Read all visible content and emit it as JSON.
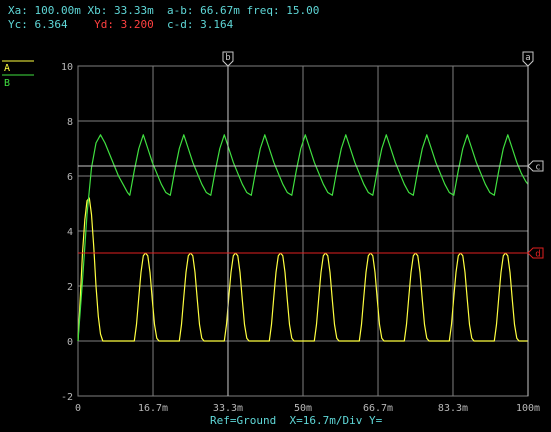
{
  "readouts": [
    {
      "label": "Xa:",
      "value": "100.00m",
      "color": "#5fd7d7"
    },
    {
      "label": "Xb:",
      "value": "33.33m",
      "color": "#5fd7d7"
    },
    {
      "label": "a-b:",
      "value": "66.67m",
      "color": "#5fd7d7"
    },
    {
      "label": "freq:",
      "value": "15.00",
      "color": "#5fd7d7"
    },
    {
      "label": "Yc:",
      "value": "6.364",
      "color": "#5fd7d7"
    },
    {
      "label": "Yd:",
      "value": "3.200",
      "color": "#ff4040"
    },
    {
      "label": "c-d:",
      "value": "3.164",
      "color": "#5fd7d7"
    }
  ],
  "legend": [
    {
      "name": "A",
      "color": "#ffff40"
    },
    {
      "name": "B",
      "color": "#40e040"
    }
  ],
  "cursors": {
    "a": {
      "name": "a",
      "x": 100,
      "color": "#c8c8c8"
    },
    "b": {
      "name": "b",
      "x": 33.33,
      "color": "#c8c8c8"
    },
    "c": {
      "name": "c",
      "y": 6.364,
      "color": "#c8c8c8"
    },
    "d": {
      "name": "d",
      "y": 3.2,
      "color": "#e02020"
    }
  },
  "status_bar": "Ref=Ground  X=16.7m/Div Y=",
  "colors": {
    "background": "#000000",
    "grid": "#7f7f7f",
    "tick_label": "#b8b8b8",
    "status": "#5fd7d7",
    "trace_a": "#ffff40",
    "trace_b": "#40e040"
  },
  "chart_data": {
    "type": "line",
    "xlim": [
      0,
      100
    ],
    "ylim": [
      -2,
      10
    ],
    "x_ticks": [
      {
        "value": 0,
        "label": "0"
      },
      {
        "value": 16.67,
        "label": "16.7m"
      },
      {
        "value": 33.33,
        "label": "33.3m"
      },
      {
        "value": 50,
        "label": "50m"
      },
      {
        "value": 66.67,
        "label": "66.7m"
      },
      {
        "value": 83.33,
        "label": "83.3m"
      },
      {
        "value": 100,
        "label": "100m"
      }
    ],
    "y_ticks": [
      {
        "value": -2,
        "label": "-2"
      },
      {
        "value": 0,
        "label": "0"
      },
      {
        "value": 2,
        "label": "2"
      },
      {
        "value": 4,
        "label": "4"
      },
      {
        "value": 6,
        "label": "6"
      },
      {
        "value": 8,
        "label": "8"
      },
      {
        "value": 10,
        "label": "10"
      }
    ],
    "grid": true,
    "series": [
      {
        "name": "A",
        "color": "#ffff40",
        "points": [
          [
            0,
            0
          ],
          [
            0.5,
            1.6
          ],
          [
            1,
            3.2
          ],
          [
            1.5,
            4.4
          ],
          [
            2,
            5.1
          ],
          [
            2.5,
            5.2
          ],
          [
            3,
            4.6
          ],
          [
            3.5,
            3.4
          ],
          [
            4,
            2
          ],
          [
            4.5,
            0.9
          ],
          [
            5,
            0.25
          ],
          [
            5.5,
            0
          ],
          [
            6,
            0
          ],
          [
            12.5,
            0
          ],
          [
            13,
            0.6
          ],
          [
            13.5,
            1.6
          ],
          [
            14,
            2.5
          ],
          [
            14.5,
            3.1
          ],
          [
            15,
            3.2
          ],
          [
            15.5,
            3.1
          ],
          [
            16,
            2.5
          ],
          [
            16.5,
            1.5
          ],
          [
            17,
            0.6
          ],
          [
            17.5,
            0.1
          ],
          [
            18,
            0
          ],
          [
            22.5,
            0
          ],
          [
            23,
            0.6
          ],
          [
            23.5,
            1.6
          ],
          [
            24,
            2.5
          ],
          [
            24.5,
            3.1
          ],
          [
            25,
            3.2
          ],
          [
            25.5,
            3.1
          ],
          [
            26,
            2.5
          ],
          [
            26.5,
            1.5
          ],
          [
            27,
            0.6
          ],
          [
            27.5,
            0.1
          ],
          [
            28,
            0
          ],
          [
            32.5,
            0
          ],
          [
            33,
            0.6
          ],
          [
            33.5,
            1.6
          ],
          [
            34,
            2.5
          ],
          [
            34.5,
            3.1
          ],
          [
            35,
            3.2
          ],
          [
            35.5,
            3.1
          ],
          [
            36,
            2.5
          ],
          [
            36.5,
            1.5
          ],
          [
            37,
            0.6
          ],
          [
            37.5,
            0.1
          ],
          [
            38,
            0
          ],
          [
            42.5,
            0
          ],
          [
            43,
            0.6
          ],
          [
            43.5,
            1.6
          ],
          [
            44,
            2.5
          ],
          [
            44.5,
            3.1
          ],
          [
            45,
            3.2
          ],
          [
            45.5,
            3.1
          ],
          [
            46,
            2.5
          ],
          [
            46.5,
            1.5
          ],
          [
            47,
            0.6
          ],
          [
            47.5,
            0.1
          ],
          [
            48,
            0
          ],
          [
            52.5,
            0
          ],
          [
            53,
            0.6
          ],
          [
            53.5,
            1.6
          ],
          [
            54,
            2.5
          ],
          [
            54.5,
            3.1
          ],
          [
            55,
            3.2
          ],
          [
            55.5,
            3.1
          ],
          [
            56,
            2.5
          ],
          [
            56.5,
            1.5
          ],
          [
            57,
            0.6
          ],
          [
            57.5,
            0.1
          ],
          [
            58,
            0
          ],
          [
            62.5,
            0
          ],
          [
            63,
            0.6
          ],
          [
            63.5,
            1.6
          ],
          [
            64,
            2.5
          ],
          [
            64.5,
            3.1
          ],
          [
            65,
            3.2
          ],
          [
            65.5,
            3.1
          ],
          [
            66,
            2.5
          ],
          [
            66.5,
            1.5
          ],
          [
            67,
            0.6
          ],
          [
            67.5,
            0.1
          ],
          [
            68,
            0
          ],
          [
            72.5,
            0
          ],
          [
            73,
            0.6
          ],
          [
            73.5,
            1.6
          ],
          [
            74,
            2.5
          ],
          [
            74.5,
            3.1
          ],
          [
            75,
            3.2
          ],
          [
            75.5,
            3.1
          ],
          [
            76,
            2.5
          ],
          [
            76.5,
            1.5
          ],
          [
            77,
            0.6
          ],
          [
            77.5,
            0.1
          ],
          [
            78,
            0
          ],
          [
            82.5,
            0
          ],
          [
            83,
            0.6
          ],
          [
            83.5,
            1.6
          ],
          [
            84,
            2.5
          ],
          [
            84.5,
            3.1
          ],
          [
            85,
            3.2
          ],
          [
            85.5,
            3.1
          ],
          [
            86,
            2.5
          ],
          [
            86.5,
            1.5
          ],
          [
            87,
            0.6
          ],
          [
            87.5,
            0.1
          ],
          [
            88,
            0
          ],
          [
            92.5,
            0
          ],
          [
            93,
            0.6
          ],
          [
            93.5,
            1.6
          ],
          [
            94,
            2.5
          ],
          [
            94.5,
            3.1
          ],
          [
            95,
            3.2
          ],
          [
            95.5,
            3.1
          ],
          [
            96,
            2.5
          ],
          [
            96.5,
            1.5
          ],
          [
            97,
            0.6
          ],
          [
            97.5,
            0.1
          ],
          [
            98,
            0
          ],
          [
            100,
            0
          ]
        ]
      },
      {
        "name": "B",
        "color": "#40e040",
        "points": [
          [
            0,
            0
          ],
          [
            1,
            2.2
          ],
          [
            2,
            4.6
          ],
          [
            3,
            6.3
          ],
          [
            4,
            7.2
          ],
          [
            5,
            7.5
          ],
          [
            6,
            7.2
          ],
          [
            7,
            6.8
          ],
          [
            8,
            6.4
          ],
          [
            9,
            6.0
          ],
          [
            10,
            5.7
          ],
          [
            11,
            5.4
          ],
          [
            11.5,
            5.3
          ],
          [
            12.5,
            6.2
          ],
          [
            13.5,
            7.0
          ],
          [
            14.5,
            7.5
          ],
          [
            15.5,
            7.0
          ],
          [
            16.5,
            6.5
          ],
          [
            17.5,
            6.1
          ],
          [
            18.5,
            5.7
          ],
          [
            19.5,
            5.4
          ],
          [
            20.5,
            5.3
          ],
          [
            21.5,
            6.2
          ],
          [
            22.5,
            7.0
          ],
          [
            23.5,
            7.5
          ],
          [
            24.5,
            7.0
          ],
          [
            25.5,
            6.5
          ],
          [
            26.5,
            6.1
          ],
          [
            27.5,
            5.7
          ],
          [
            28.5,
            5.4
          ],
          [
            29.5,
            5.3
          ],
          [
            30.5,
            6.2
          ],
          [
            31.5,
            7.0
          ],
          [
            32.5,
            7.5
          ],
          [
            33.5,
            7.0
          ],
          [
            34.5,
            6.5
          ],
          [
            35.5,
            6.1
          ],
          [
            36.5,
            5.7
          ],
          [
            37.5,
            5.4
          ],
          [
            38.5,
            5.3
          ],
          [
            39.5,
            6.2
          ],
          [
            40.5,
            7.0
          ],
          [
            41.5,
            7.5
          ],
          [
            42.5,
            7.0
          ],
          [
            43.5,
            6.5
          ],
          [
            44.5,
            6.1
          ],
          [
            45.5,
            5.7
          ],
          [
            46.5,
            5.4
          ],
          [
            47.5,
            5.3
          ],
          [
            48.5,
            6.2
          ],
          [
            49.5,
            7.0
          ],
          [
            50.5,
            7.5
          ],
          [
            51.5,
            7.0
          ],
          [
            52.5,
            6.5
          ],
          [
            53.5,
            6.1
          ],
          [
            54.5,
            5.7
          ],
          [
            55.5,
            5.4
          ],
          [
            56.5,
            5.3
          ],
          [
            57.5,
            6.2
          ],
          [
            58.5,
            7.0
          ],
          [
            59.5,
            7.5
          ],
          [
            60.5,
            7.0
          ],
          [
            61.5,
            6.5
          ],
          [
            62.5,
            6.1
          ],
          [
            63.5,
            5.7
          ],
          [
            64.5,
            5.4
          ],
          [
            65.5,
            5.3
          ],
          [
            66.5,
            6.2
          ],
          [
            67.5,
            7.0
          ],
          [
            68.5,
            7.5
          ],
          [
            69.5,
            7.0
          ],
          [
            70.5,
            6.5
          ],
          [
            71.5,
            6.1
          ],
          [
            72.5,
            5.7
          ],
          [
            73.5,
            5.4
          ],
          [
            74.5,
            5.3
          ],
          [
            75.5,
            6.2
          ],
          [
            76.5,
            7.0
          ],
          [
            77.5,
            7.5
          ],
          [
            78.5,
            7.0
          ],
          [
            79.5,
            6.5
          ],
          [
            80.5,
            6.1
          ],
          [
            81.5,
            5.7
          ],
          [
            82.5,
            5.4
          ],
          [
            83.5,
            5.3
          ],
          [
            84.5,
            6.2
          ],
          [
            85.5,
            7.0
          ],
          [
            86.5,
            7.5
          ],
          [
            87.5,
            7.0
          ],
          [
            88.5,
            6.5
          ],
          [
            89.5,
            6.1
          ],
          [
            90.5,
            5.7
          ],
          [
            91.5,
            5.4
          ],
          [
            92.5,
            5.3
          ],
          [
            93.5,
            6.2
          ],
          [
            94.5,
            7.0
          ],
          [
            95.5,
            7.5
          ],
          [
            96.5,
            7.0
          ],
          [
            97.5,
            6.5
          ],
          [
            98.5,
            6.1
          ],
          [
            99.5,
            5.8
          ],
          [
            100,
            5.7
          ]
        ]
      }
    ]
  }
}
